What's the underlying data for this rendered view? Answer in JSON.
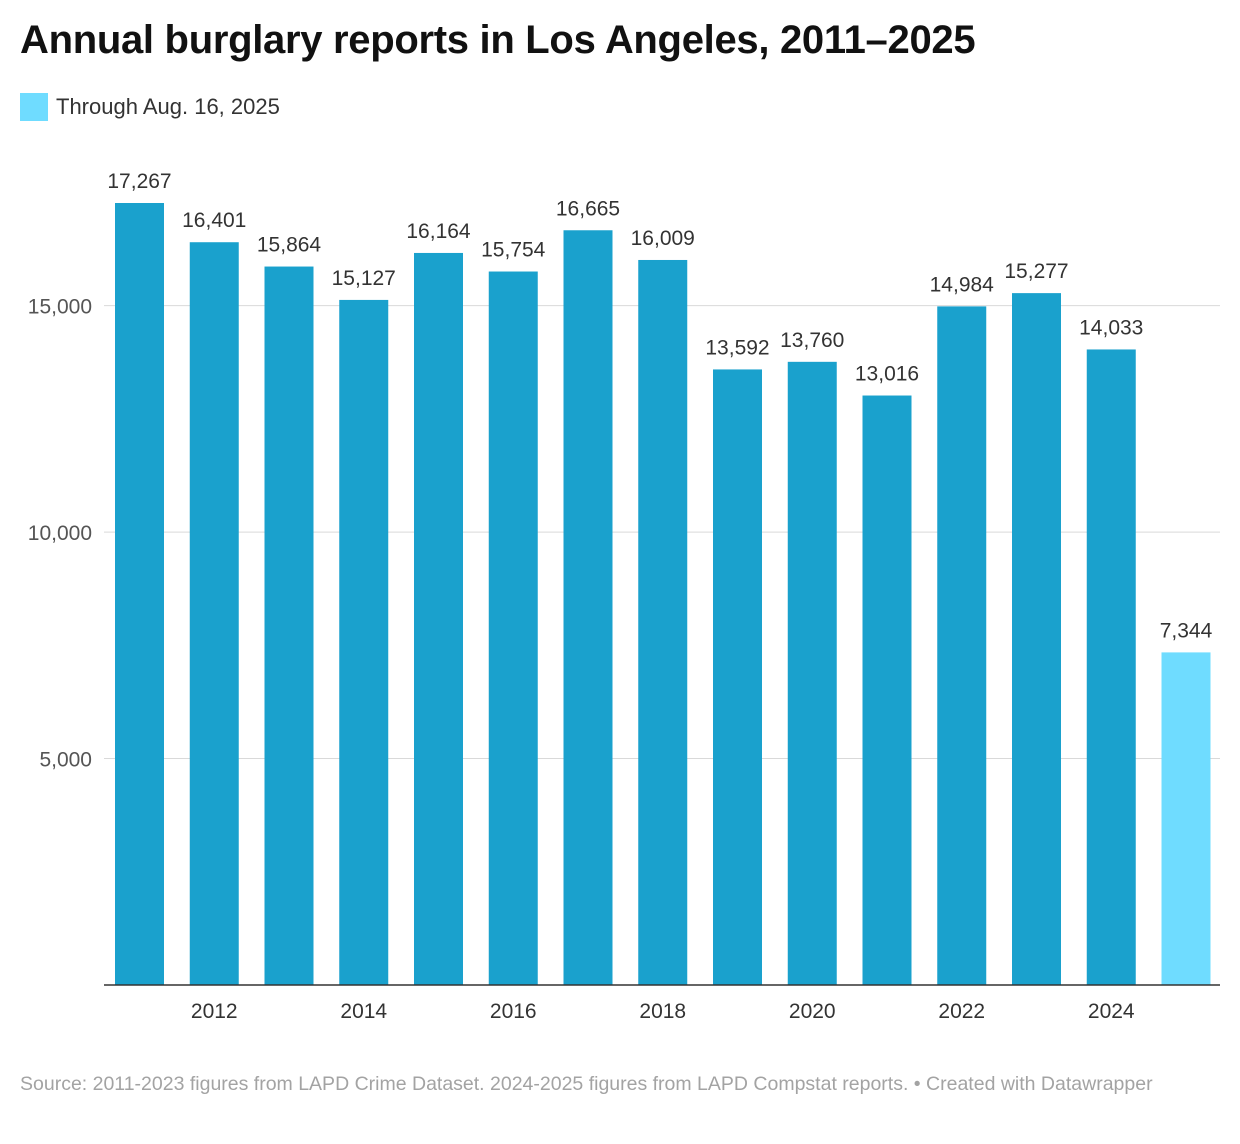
{
  "chart_data": {
    "type": "bar",
    "title": "Annual burglary reports in Los Angeles, 2011–2025",
    "legend": [
      {
        "label": "Through Aug. 16, 2025",
        "color": "#6fdcff"
      }
    ],
    "x": [
      2011,
      2012,
      2013,
      2014,
      2015,
      2016,
      2017,
      2018,
      2019,
      2020,
      2021,
      2022,
      2023,
      2024,
      2025
    ],
    "values": [
      17267,
      16401,
      15864,
      15127,
      16164,
      15754,
      16665,
      16009,
      13592,
      13760,
      13016,
      14984,
      15277,
      14033,
      7344
    ],
    "value_labels": [
      "17,267",
      "16,401",
      "15,864",
      "15,127",
      "16,164",
      "15,754",
      "16,665",
      "16,009",
      "13,592",
      "13,760",
      "13,016",
      "14,984",
      "15,277",
      "14,033",
      "7,344"
    ],
    "x_ticks": [
      "2012",
      "2014",
      "2016",
      "2018",
      "2020",
      "2022",
      "2024"
    ],
    "y_ticks": [
      5000,
      10000,
      15000
    ],
    "y_tick_labels": [
      "5,000",
      "10,000",
      "15,000"
    ],
    "ylim": [
      0,
      17267
    ],
    "grid": true,
    "colors": {
      "default": "#1aa1cd",
      "partial_year": "#6fdcff"
    },
    "highlighted_year": 2025
  },
  "footer": {
    "source": "Source: 2011-2023 figures from LAPD Crime Dataset. 2024-2025 figures from LAPD Compstat reports. • Created with Datawrapper"
  }
}
